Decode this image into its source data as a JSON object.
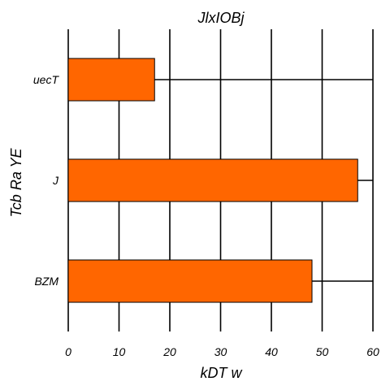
{
  "chart_data": {
    "type": "bar",
    "orientation": "horizontal",
    "title": "JlxIOBj",
    "xlabel": "kDT w",
    "ylabel": "Tcb  Ra YE",
    "categories": [
      "uecT",
      "J",
      "BZM"
    ],
    "values": [
      17,
      57,
      48
    ],
    "xlim": [
      0,
      60
    ],
    "xticks": [
      0,
      10,
      20,
      30,
      40,
      50,
      60
    ],
    "grid": true,
    "bar_color": "#ff6600"
  }
}
